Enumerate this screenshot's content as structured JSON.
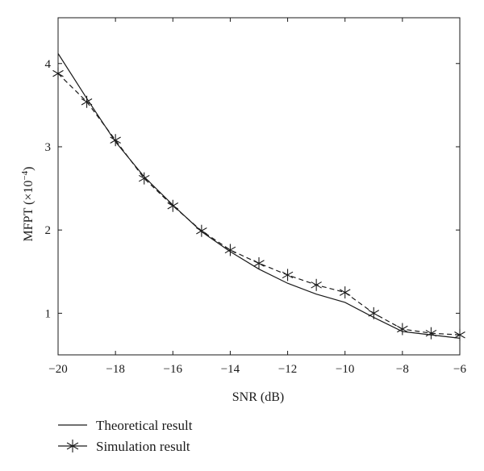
{
  "chart_data": {
    "type": "line",
    "xlabel": "SNR (dB)",
    "ylabel": "MFPT (×10",
    "ylabel_exponent": "−4",
    "ylabel_suffix": ")",
    "xlim": [
      -20,
      -6
    ],
    "ylim": [
      0.5,
      4.55
    ],
    "xticks": [
      -20,
      -18,
      -16,
      -14,
      -12,
      -10,
      -8,
      -6
    ],
    "xtick_labels": [
      "−20",
      "−18",
      "−16",
      "−14",
      "−12",
      "−10",
      "−8",
      "−6"
    ],
    "yticks": [
      1,
      2,
      3,
      4
    ],
    "ytick_labels": [
      "1",
      "2",
      "3",
      "4"
    ],
    "grid": false,
    "legend_position": "below",
    "series": [
      {
        "name": "Theoretical result",
        "style": "solid",
        "marker": "none",
        "color": "#1a1a1a",
        "x": [
          -20,
          -19,
          -18,
          -17,
          -16,
          -15,
          -14,
          -13,
          -12,
          -11,
          -10,
          -9,
          -8,
          -7,
          -6
        ],
        "y": [
          4.12,
          3.58,
          3.06,
          2.64,
          2.3,
          1.98,
          1.74,
          1.53,
          1.36,
          1.23,
          1.13,
          0.95,
          0.78,
          0.74,
          0.7
        ]
      },
      {
        "name": "Simulation result",
        "style": "dashed",
        "marker": "asterisk",
        "color": "#1a1a1a",
        "x": [
          -20,
          -19,
          -18,
          -17,
          -16,
          -15,
          -14,
          -13,
          -12,
          -11,
          -10,
          -9,
          -8,
          -7,
          -6
        ],
        "y": [
          3.88,
          3.54,
          3.08,
          2.62,
          2.29,
          1.99,
          1.76,
          1.6,
          1.46,
          1.34,
          1.25,
          1.0,
          0.81,
          0.76,
          0.74
        ]
      }
    ]
  }
}
